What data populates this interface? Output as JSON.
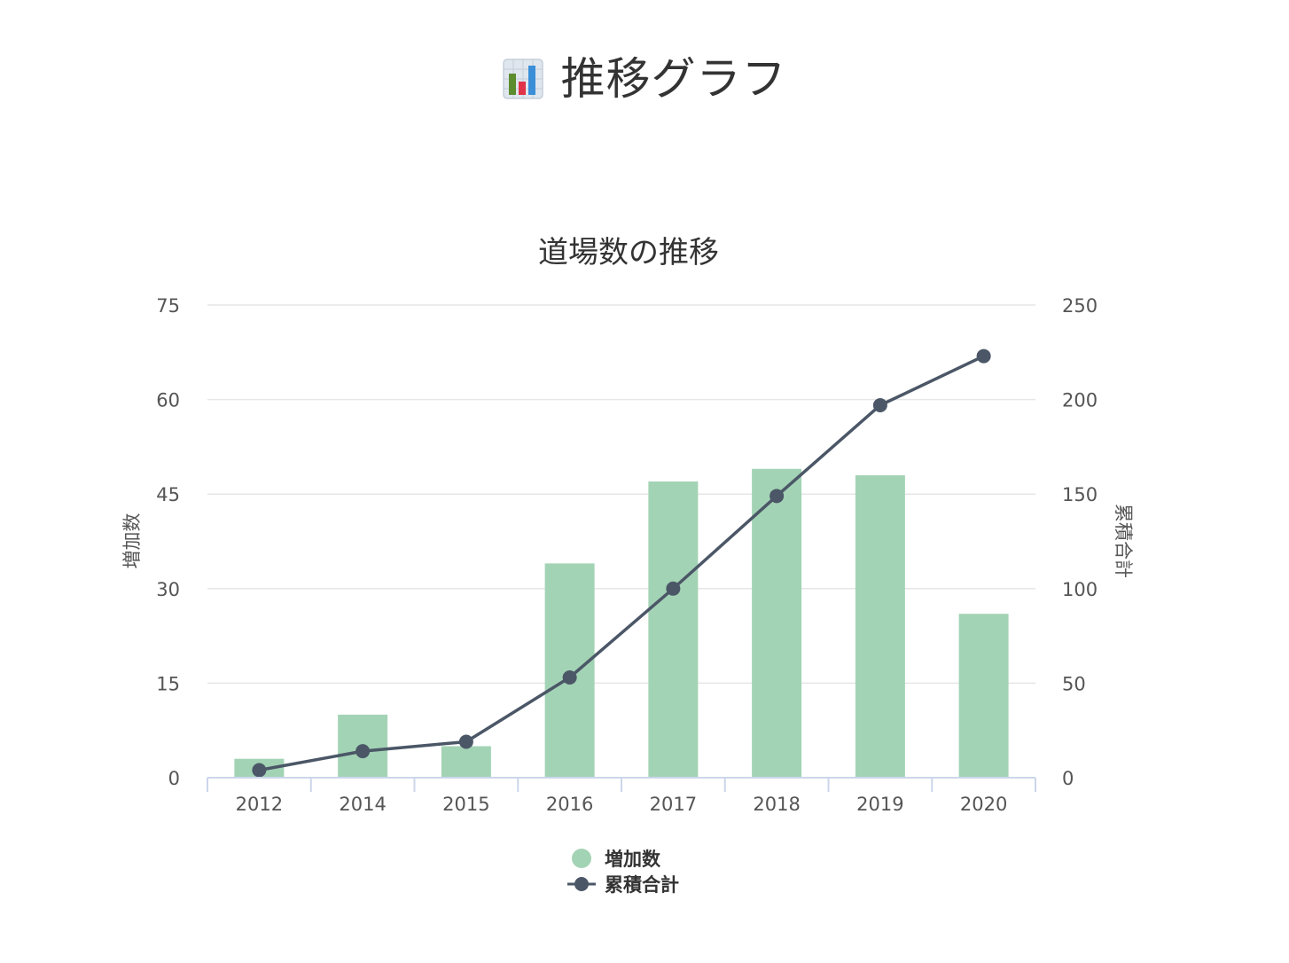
{
  "page": {
    "title": "推移グラフ",
    "icon": "bar-chart-icon"
  },
  "chart_data": {
    "type": "bar",
    "title": "道場数の推移",
    "categories": [
      "2012",
      "2014",
      "2015",
      "2016",
      "2017",
      "2018",
      "2019",
      "2020"
    ],
    "series": [
      {
        "name": "増加数",
        "type": "bar",
        "axis": "left",
        "color": "#a3d3b5",
        "values": [
          3,
          10,
          5,
          34,
          47,
          49,
          48,
          26
        ]
      },
      {
        "name": "累積合計",
        "type": "line",
        "axis": "right",
        "color": "#4b5767",
        "values": [
          4,
          14,
          19,
          53,
          100,
          149,
          197,
          223
        ]
      }
    ],
    "y_left": {
      "label": "増加数",
      "range": [
        0,
        75
      ],
      "ticks": [
        "0",
        "15",
        "30",
        "45",
        "60",
        "75"
      ]
    },
    "y_right": {
      "label": "累積合計",
      "range": [
        0,
        250
      ],
      "ticks": [
        "0",
        "50",
        "100",
        "150",
        "200",
        "250"
      ]
    },
    "grid": true,
    "legend_placement": "bottom-center",
    "colors": {
      "grid": "#e6e6e6",
      "axis_line": "#ccd6eb",
      "tick_text": "#555555",
      "title_text": "#333333"
    }
  }
}
